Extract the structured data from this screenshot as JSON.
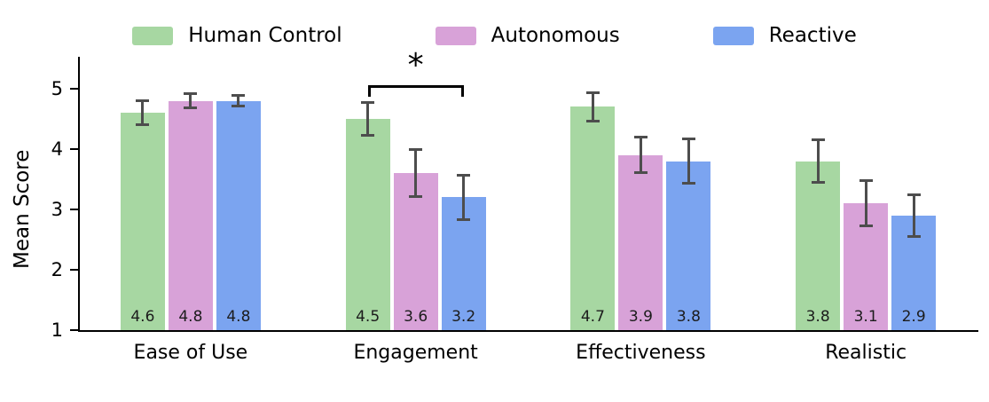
{
  "chart_data": {
    "type": "bar",
    "title": "",
    "xlabel": "",
    "ylabel": "Mean Score",
    "ylim": [
      1,
      5.4
    ],
    "yticks": [
      1,
      2,
      3,
      4,
      5
    ],
    "grid": false,
    "legend_position": "top",
    "categories": [
      "Ease of Use",
      "Engagement",
      "Effectiveness",
      "Realistic"
    ],
    "series": [
      {
        "name": "Human Control",
        "color": "#a7d7a2",
        "values": [
          4.6,
          4.5,
          4.7,
          3.8
        ],
        "errors": [
          0.21,
          0.28,
          0.24,
          0.36
        ]
      },
      {
        "name": "Autonomous",
        "color": "#d8a2d8",
        "values": [
          4.8,
          3.6,
          3.9,
          3.1
        ],
        "errors": [
          0.12,
          0.4,
          0.3,
          0.38
        ]
      },
      {
        "name": "Reactive",
        "color": "#7ba4f0",
        "values": [
          4.8,
          3.2,
          3.8,
          2.9
        ],
        "errors": [
          0.1,
          0.38,
          0.37,
          0.35
        ]
      }
    ],
    "bar_labels": true,
    "error_bar_color": "#4d4d4d",
    "axis_color": "#000000",
    "annotation": {
      "type": "significance-bracket",
      "symbol": "*",
      "category": "Engagement",
      "from_series": "Human Control",
      "to_series": "Reactive"
    }
  }
}
